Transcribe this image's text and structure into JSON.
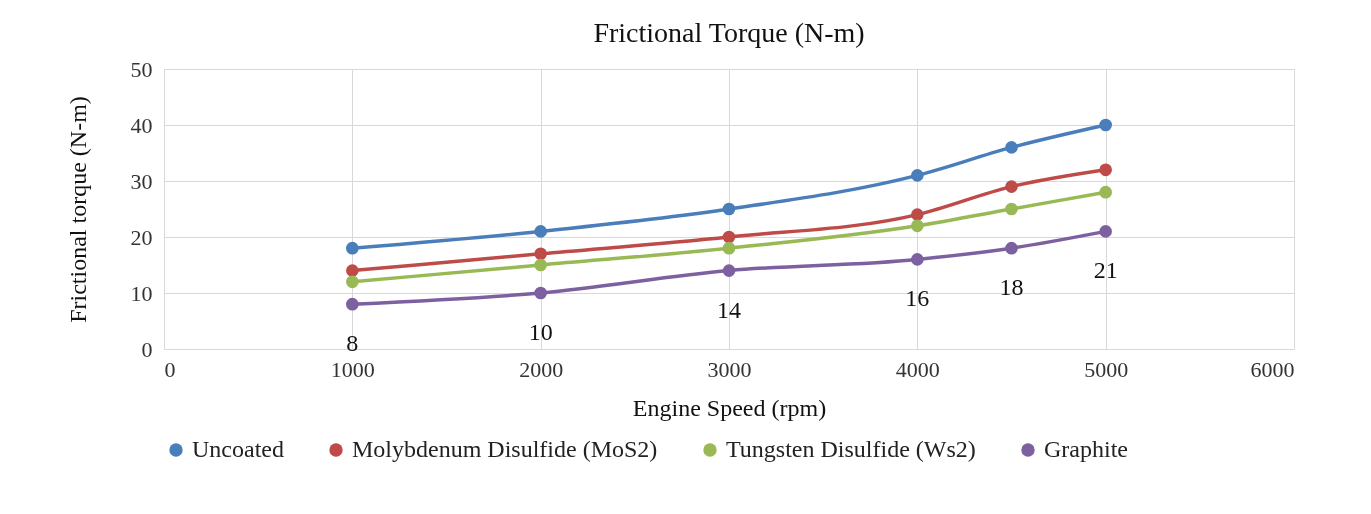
{
  "chart_data": {
    "type": "line",
    "title": "Frictional Torque (N-m)",
    "xlabel": "Engine Speed (rpm)",
    "ylabel": "Frictional torque (N-m)",
    "x": [
      1000,
      2000,
      3000,
      4000,
      4500,
      5000
    ],
    "series": [
      {
        "name": "Uncoated",
        "color": "#4a7ebb",
        "values": [
          18,
          21,
          25,
          31,
          36,
          40
        ]
      },
      {
        "name": "Molybdenum Disulfide (MoS2)",
        "color": "#be4b48",
        "values": [
          14,
          17,
          20,
          24,
          29,
          32
        ]
      },
      {
        "name": "Tungsten Disulfide (Ws2)",
        "color": "#98b954",
        "values": [
          12,
          15,
          18,
          22,
          25,
          28
        ]
      },
      {
        "name": "Graphite",
        "color": "#7d60a0",
        "values": [
          8,
          10,
          14,
          16,
          18,
          21
        ],
        "value_labels": [
          "8",
          "10",
          "14",
          "16",
          "18",
          "21"
        ]
      }
    ],
    "xlim": [
      0,
      6000
    ],
    "xticks": [
      0,
      1000,
      2000,
      3000,
      4000,
      5000,
      6000
    ],
    "ylim": [
      0,
      50
    ],
    "yticks": [
      0,
      10,
      20,
      30,
      40,
      50
    ],
    "grid": true,
    "legend": "bottom",
    "marker": "circle",
    "line_style": "solid"
  }
}
